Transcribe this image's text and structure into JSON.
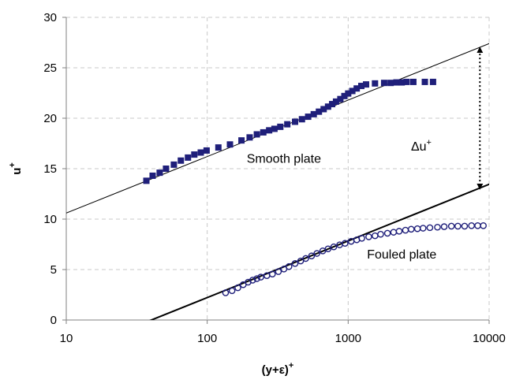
{
  "chart_data": {
    "type": "scatter",
    "x_scale": "log",
    "xlim": [
      10,
      10000
    ],
    "ylim": [
      0,
      30
    ],
    "x_ticks": [
      10,
      100,
      1000,
      10000
    ],
    "y_ticks": [
      0,
      5,
      10,
      15,
      20,
      25,
      30
    ],
    "x_tick_labels": [
      "10",
      "100",
      "1000",
      "10000"
    ],
    "y_tick_labels": [
      "0",
      "5",
      "10",
      "15",
      "20",
      "25",
      "30"
    ],
    "xlabel_main": "(y+ε)",
    "xlabel_sup": "+",
    "ylabel_main": "u",
    "ylabel_sup": "+",
    "grid": true,
    "legend": "none",
    "series": [
      {
        "marker": "filled-square",
        "color": "#1f1f7a",
        "points": [
          [
            37,
            13.8
          ],
          [
            41,
            14.3
          ],
          [
            46,
            14.6
          ],
          [
            51,
            15.0
          ],
          [
            58,
            15.4
          ],
          [
            65,
            15.8
          ],
          [
            73,
            16.1
          ],
          [
            81,
            16.4
          ],
          [
            90,
            16.6
          ],
          [
            99,
            16.8
          ],
          [
            120,
            17.1
          ],
          [
            145,
            17.4
          ],
          [
            175,
            17.8
          ],
          [
            200,
            18.1
          ],
          [
            225,
            18.4
          ],
          [
            250,
            18.6
          ],
          [
            275,
            18.8
          ],
          [
            300,
            18.95
          ],
          [
            330,
            19.15
          ],
          [
            370,
            19.4
          ],
          [
            420,
            19.65
          ],
          [
            470,
            19.9
          ],
          [
            520,
            20.15
          ],
          [
            570,
            20.4
          ],
          [
            620,
            20.65
          ],
          [
            670,
            20.9
          ],
          [
            720,
            21.15
          ],
          [
            770,
            21.4
          ],
          [
            820,
            21.65
          ],
          [
            880,
            21.9
          ],
          [
            940,
            22.2
          ],
          [
            1000,
            22.45
          ],
          [
            1070,
            22.7
          ],
          [
            1150,
            22.95
          ],
          [
            1240,
            23.2
          ],
          [
            1340,
            23.35
          ],
          [
            1550,
            23.45
          ],
          [
            1800,
            23.5
          ],
          [
            2000,
            23.5
          ],
          [
            2200,
            23.55
          ],
          [
            2400,
            23.55
          ],
          [
            2600,
            23.6
          ],
          [
            2900,
            23.6
          ],
          [
            3500,
            23.6
          ],
          [
            4000,
            23.6
          ]
        ]
      },
      {
        "marker": "open-circle",
        "color": "#1f1f7a",
        "points": [
          [
            135,
            2.7
          ],
          [
            150,
            2.9
          ],
          [
            165,
            3.2
          ],
          [
            180,
            3.5
          ],
          [
            195,
            3.75
          ],
          [
            210,
            3.95
          ],
          [
            225,
            4.1
          ],
          [
            240,
            4.25
          ],
          [
            265,
            4.4
          ],
          [
            290,
            4.55
          ],
          [
            320,
            4.8
          ],
          [
            350,
            5.05
          ],
          [
            380,
            5.3
          ],
          [
            420,
            5.6
          ],
          [
            460,
            5.85
          ],
          [
            500,
            6.1
          ],
          [
            550,
            6.35
          ],
          [
            600,
            6.6
          ],
          [
            660,
            6.85
          ],
          [
            720,
            7.05
          ],
          [
            790,
            7.25
          ],
          [
            870,
            7.45
          ],
          [
            950,
            7.6
          ],
          [
            1050,
            7.8
          ],
          [
            1150,
            7.95
          ],
          [
            1250,
            8.1
          ],
          [
            1400,
            8.25
          ],
          [
            1550,
            8.35
          ],
          [
            1700,
            8.5
          ],
          [
            1900,
            8.6
          ],
          [
            2100,
            8.7
          ],
          [
            2300,
            8.8
          ],
          [
            2550,
            8.9
          ],
          [
            2800,
            9.0
          ],
          [
            3100,
            9.05
          ],
          [
            3400,
            9.1
          ],
          [
            3800,
            9.15
          ],
          [
            4300,
            9.2
          ],
          [
            4800,
            9.25
          ],
          [
            5400,
            9.3
          ],
          [
            6000,
            9.3
          ],
          [
            6700,
            9.3
          ],
          [
            7500,
            9.35
          ],
          [
            8300,
            9.35
          ],
          [
            9100,
            9.35
          ]
        ]
      }
    ],
    "lines": [
      {
        "p1": [
          10,
          10.6
        ],
        "p2": [
          10000,
          27.4
        ],
        "weight": "thin"
      },
      {
        "p1": [
          37,
          -0.2
        ],
        "p2": [
          10000,
          13.45
        ],
        "weight": "thick"
      }
    ],
    "annotations": {
      "smooth_label": "Smooth plate",
      "fouled_label": "Fouled plate",
      "delta_main": "Δu",
      "delta_sup": "+"
    },
    "delta_arrow": {
      "x": 8600,
      "y_top": 27.1,
      "y_bottom": 12.9
    },
    "label_anchors": {
      "smooth": [
        350,
        15.6
      ],
      "fouled": [
        2400,
        6.1
      ],
      "delta": [
        3300,
        16.8
      ]
    }
  }
}
